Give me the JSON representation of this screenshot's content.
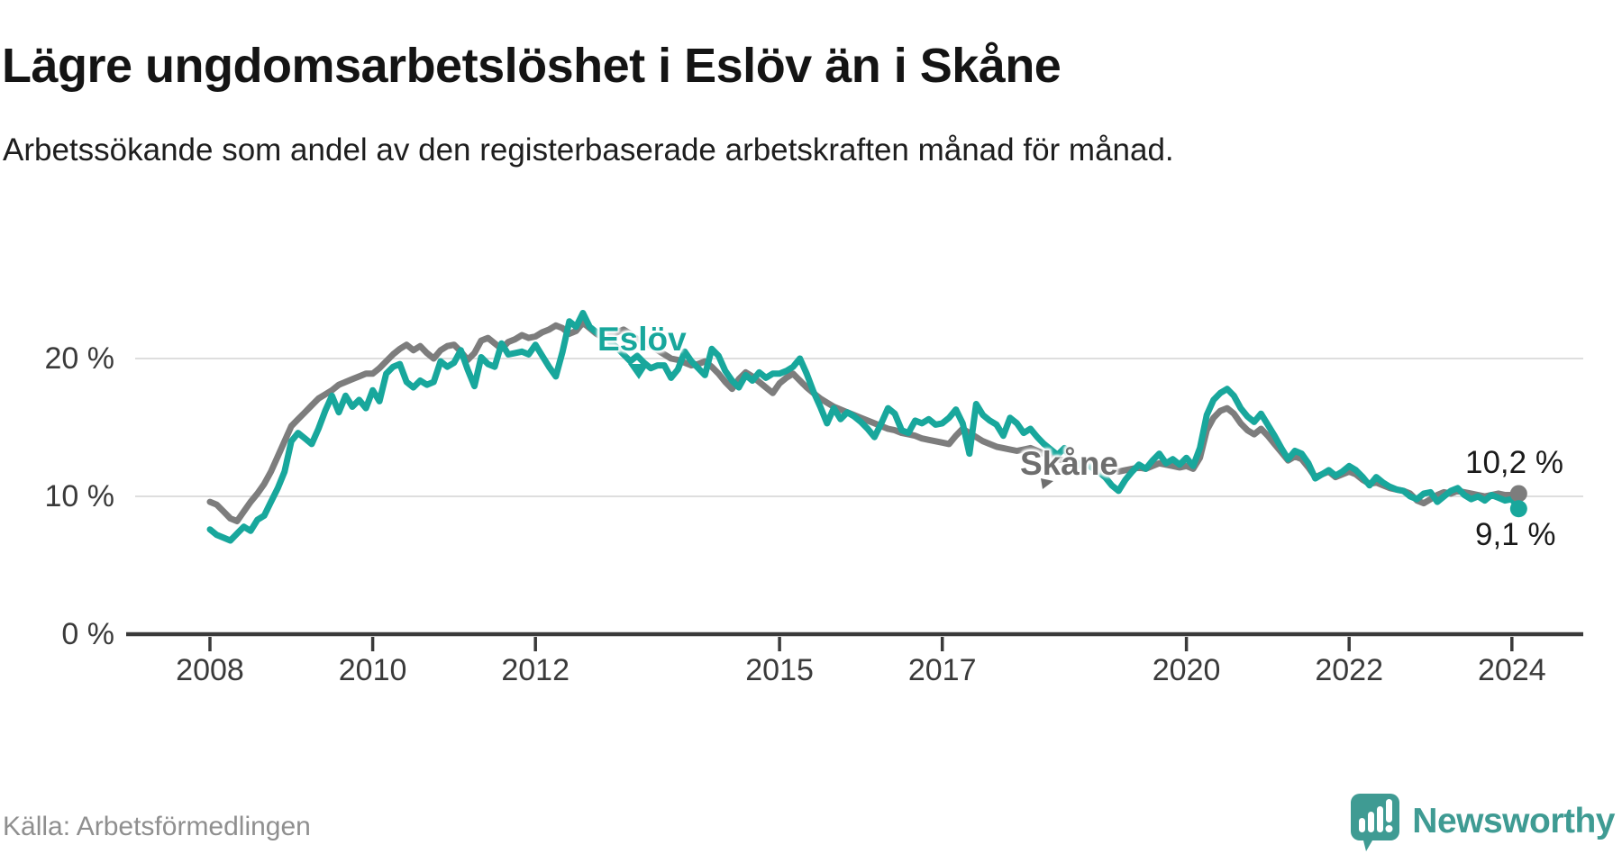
{
  "header": {
    "title": "Lägre ungdomsarbetslöshet i Eslöv än i Skåne",
    "subtitle": "Arbetssökande som andel av den registerbaserade arbetskraften månad för månad."
  },
  "footer": {
    "source": "Källa: Arbetsförmedlingen",
    "brand": "Newsworthy"
  },
  "chart_data": {
    "type": "line",
    "unit": "%",
    "frequency": "monthly",
    "x_start": "2008-01",
    "x_end": "2024-02",
    "xlim": [
      2007.5,
      2024.9
    ],
    "ylim": [
      0,
      24
    ],
    "grid": "horizontal",
    "legend_position": "inline-labels",
    "y_ticks": [
      {
        "value": 20,
        "label": "20 %"
      },
      {
        "value": 10,
        "label": "10 %"
      },
      {
        "value": 0,
        "label": "0 %"
      }
    ],
    "x_ticks": [
      {
        "year": 2008,
        "label": "2008"
      },
      {
        "year": 2010,
        "label": "2010"
      },
      {
        "year": 2012,
        "label": "2012"
      },
      {
        "year": 2015,
        "label": "2015"
      },
      {
        "year": 2017,
        "label": "2017"
      },
      {
        "year": 2020,
        "label": "2020"
      },
      {
        "year": 2022,
        "label": "2022"
      },
      {
        "year": 2024,
        "label": "2024"
      }
    ],
    "series": [
      {
        "name": "Skåne",
        "color": "#7d7d7d",
        "end_label": "10,2 %",
        "end_value": 10.2,
        "values": [
          9.6,
          9.4,
          8.9,
          8.4,
          8.2,
          8.9,
          9.6,
          10.2,
          10.9,
          11.8,
          12.9,
          14.0,
          15.1,
          15.6,
          16.1,
          16.6,
          17.1,
          17.4,
          17.7,
          18.1,
          18.3,
          18.5,
          18.7,
          18.9,
          18.9,
          19.3,
          19.8,
          20.3,
          20.7,
          21.0,
          20.6,
          20.9,
          20.4,
          20.0,
          20.6,
          20.9,
          21.0,
          20.5,
          19.9,
          20.4,
          21.3,
          21.5,
          21.1,
          20.7,
          21.2,
          21.4,
          21.7,
          21.5,
          21.6,
          21.9,
          22.1,
          22.4,
          22.2,
          21.8,
          22.0,
          22.6,
          22.2,
          21.8,
          21.5,
          21.7,
          21.9,
          22.1,
          21.8,
          21.4,
          21.2,
          20.9,
          20.6,
          20.3,
          20.0,
          19.9,
          19.7,
          19.5,
          19.6,
          19.8,
          19.4,
          18.9,
          18.3,
          17.8,
          18.5,
          19.0,
          18.7,
          18.3,
          17.9,
          17.5,
          18.2,
          18.6,
          18.9,
          18.4,
          17.9,
          17.5,
          17.1,
          16.8,
          16.5,
          16.3,
          16.1,
          15.9,
          15.7,
          15.5,
          15.3,
          15.1,
          14.9,
          14.8,
          14.6,
          14.5,
          14.4,
          14.2,
          14.1,
          14.0,
          13.9,
          13.8,
          14.4,
          14.9,
          14.6,
          14.3,
          14.0,
          13.8,
          13.6,
          13.5,
          13.4,
          13.3,
          13.4,
          13.5,
          13.3,
          13.1,
          12.9,
          12.7,
          12.6,
          12.5,
          12.4,
          12.3,
          12.2,
          12.1,
          12.0,
          11.9,
          11.8,
          11.9,
          12.0,
          12.1,
          12.0,
          12.2,
          12.4,
          12.3,
          12.2,
          12.1,
          12.2,
          12.0,
          12.8,
          14.8,
          15.7,
          16.2,
          16.4,
          16.0,
          15.3,
          14.8,
          14.5,
          14.9,
          14.4,
          13.8,
          13.2,
          12.6,
          12.9,
          12.7,
          12.1,
          11.4,
          11.6,
          11.8,
          11.4,
          11.6,
          11.8,
          11.6,
          11.2,
          10.9,
          11.0,
          10.8,
          10.6,
          10.5,
          10.4,
          10.2,
          9.7,
          9.5,
          9.8,
          10.1,
          10.3,
          10.2,
          10.4,
          10.3,
          10.2,
          10.1,
          10.0,
          10.1,
          10.2,
          10.1,
          10.1,
          10.2
        ]
      },
      {
        "name": "Eslöv",
        "color": "#18a79c",
        "end_label": "9,1 %",
        "end_value": 9.1,
        "values": [
          7.6,
          7.2,
          7.0,
          6.8,
          7.3,
          7.8,
          7.5,
          8.3,
          8.6,
          9.6,
          10.6,
          11.8,
          14.0,
          14.6,
          14.2,
          13.8,
          14.9,
          16.2,
          17.3,
          16.1,
          17.3,
          16.5,
          17.0,
          16.4,
          17.7,
          16.9,
          18.9,
          19.4,
          19.6,
          18.3,
          17.9,
          18.4,
          18.1,
          18.3,
          19.8,
          19.4,
          19.7,
          20.6,
          19.2,
          18.0,
          20.1,
          19.6,
          19.4,
          21.1,
          20.3,
          20.4,
          20.5,
          20.3,
          21.0,
          20.2,
          19.4,
          18.7,
          20.5,
          22.7,
          22.3,
          23.3,
          22.3,
          21.9,
          21.6,
          21.2,
          20.8,
          20.3,
          19.8,
          20.2,
          19.7,
          19.3,
          19.5,
          19.5,
          18.6,
          19.2,
          20.5,
          19.8,
          19.3,
          18.8,
          20.7,
          20.2,
          19.1,
          18.4,
          17.9,
          18.8,
          18.4,
          19.0,
          18.6,
          18.9,
          18.9,
          19.1,
          19.4,
          20.0,
          18.9,
          17.6,
          16.5,
          15.3,
          16.4,
          15.6,
          16.1,
          15.8,
          15.4,
          14.9,
          14.3,
          15.3,
          16.4,
          16.0,
          14.8,
          14.6,
          15.5,
          15.3,
          15.6,
          15.2,
          15.3,
          15.7,
          16.3,
          15.3,
          13.1,
          16.7,
          15.9,
          15.5,
          15.2,
          14.4,
          15.7,
          15.3,
          14.6,
          14.9,
          14.3,
          13.8,
          13.4,
          13.0,
          13.5,
          12.7,
          12.2,
          12.6,
          12.1,
          11.8,
          11.4,
          10.8,
          10.4,
          11.2,
          11.8,
          12.3,
          12.0,
          12.6,
          13.1,
          12.4,
          12.7,
          12.3,
          12.8,
          12.2,
          13.5,
          15.9,
          17.0,
          17.5,
          17.8,
          17.3,
          16.4,
          15.8,
          15.4,
          16.0,
          15.2,
          14.4,
          13.5,
          12.7,
          13.3,
          13.1,
          12.4,
          11.3,
          11.6,
          11.9,
          11.5,
          11.8,
          12.2,
          11.9,
          11.4,
          10.8,
          11.4,
          11.0,
          10.7,
          10.5,
          10.4,
          10.0,
          9.8,
          10.2,
          10.3,
          9.6,
          10.0,
          10.4,
          10.6,
          10.1,
          9.8,
          10.0,
          9.7,
          10.1,
          9.9,
          9.7,
          9.8,
          9.1
        ]
      }
    ]
  }
}
